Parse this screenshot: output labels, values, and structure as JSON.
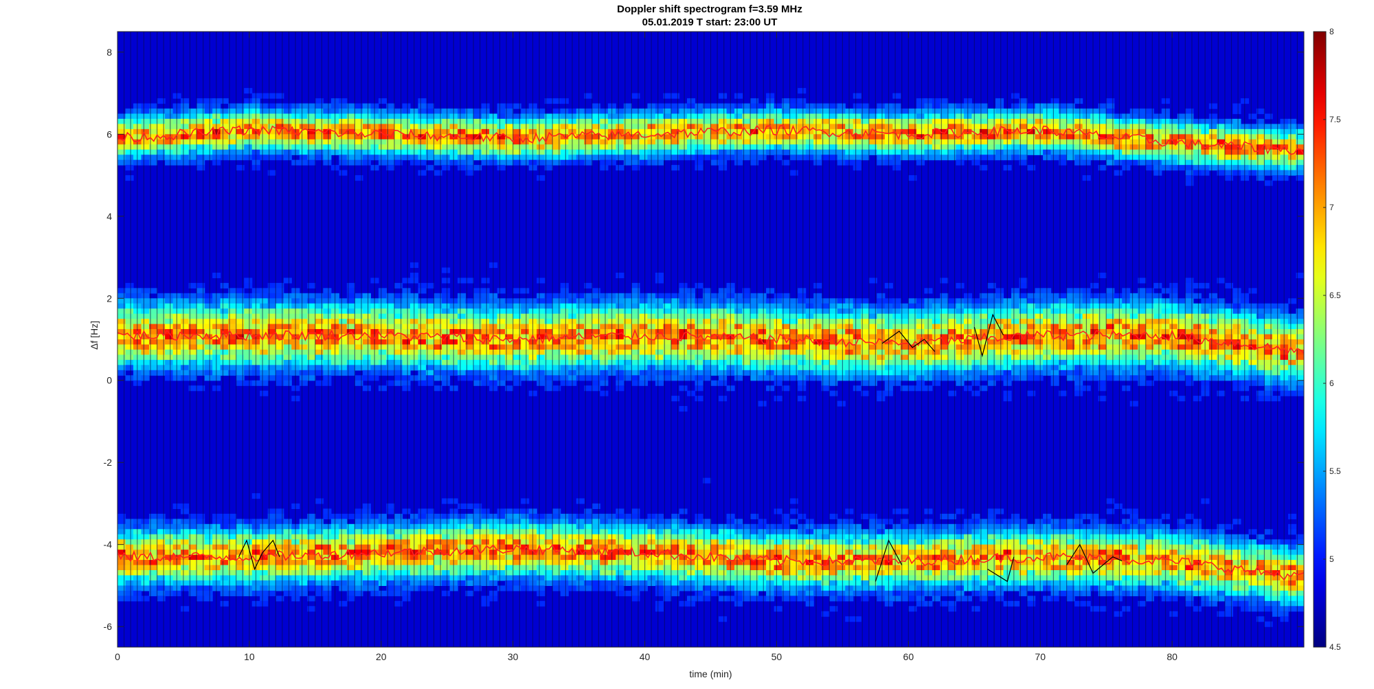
{
  "chart_data": {
    "type": "heatmap",
    "title": "Doppler shift spectrogram f=3.59 MHz",
    "subtitle": "05.01.2019   T start: 23:00 UT",
    "xlabel": "time (min)",
    "ylabel": "Δf [Hz]",
    "xlim": [
      0,
      90
    ],
    "ylim": [
      -6.5,
      8.5
    ],
    "xticks": [
      0,
      10,
      20,
      30,
      40,
      50,
      60,
      70,
      80
    ],
    "yticks": [
      -6,
      -4,
      -2,
      0,
      2,
      4,
      6,
      8
    ],
    "colorbar": {
      "colormap": "jet",
      "clim": [
        4.5,
        8
      ],
      "ticks": [
        4.5,
        5,
        5.5,
        6,
        6.5,
        7,
        7.5,
        8
      ]
    },
    "bands": [
      {
        "name": "upper",
        "center": [
          [
            0,
            5.9
          ],
          [
            10,
            6.1
          ],
          [
            20,
            6.0
          ],
          [
            30,
            5.9
          ],
          [
            40,
            6.0
          ],
          [
            50,
            6.1
          ],
          [
            60,
            6.0
          ],
          [
            70,
            6.1
          ],
          [
            80,
            5.8
          ],
          [
            90,
            5.6
          ]
        ],
        "halfwidth": 0.45
      },
      {
        "name": "middle",
        "center": [
          [
            0,
            1.1
          ],
          [
            10,
            1.1
          ],
          [
            20,
            1.1
          ],
          [
            30,
            1.0
          ],
          [
            40,
            1.1
          ],
          [
            50,
            1.0
          ],
          [
            60,
            0.9
          ],
          [
            70,
            1.1
          ],
          [
            80,
            1.1
          ],
          [
            90,
            0.7
          ]
        ],
        "halfwidth": 0.7
      },
      {
        "name": "lower",
        "center": [
          [
            0,
            -4.3
          ],
          [
            10,
            -4.3
          ],
          [
            20,
            -4.2
          ],
          [
            30,
            -4.1
          ],
          [
            40,
            -4.2
          ],
          [
            50,
            -4.4
          ],
          [
            60,
            -4.4
          ],
          [
            70,
            -4.3
          ],
          [
            80,
            -4.4
          ],
          [
            90,
            -4.8
          ]
        ],
        "halfwidth": 0.6
      }
    ],
    "black_segments": [
      [
        [
          9.2,
          -4.3
        ],
        [
          9.8,
          -3.9
        ],
        [
          10.4,
          -4.6
        ],
        [
          11.0,
          -4.2
        ],
        [
          11.8,
          -3.9
        ],
        [
          12.3,
          -4.3
        ]
      ],
      [
        [
          57.5,
          -4.9
        ],
        [
          58.5,
          -3.9
        ],
        [
          59.5,
          -4.5
        ]
      ],
      [
        [
          58.0,
          0.9
        ],
        [
          59.3,
          1.2
        ],
        [
          60.3,
          0.8
        ],
        [
          61.2,
          1.0
        ],
        [
          62.0,
          0.7
        ]
      ],
      [
        [
          65.0,
          1.3
        ],
        [
          65.6,
          0.6
        ],
        [
          66.4,
          1.6
        ],
        [
          67.2,
          1.1
        ]
      ],
      [
        [
          66.0,
          -4.6
        ],
        [
          67.5,
          -4.9
        ],
        [
          68.0,
          -4.3
        ]
      ],
      [
        [
          72.0,
          -4.5
        ],
        [
          73.0,
          -4.0
        ],
        [
          74.0,
          -4.7
        ],
        [
          75.5,
          -4.3
        ],
        [
          76.2,
          -4.4
        ]
      ]
    ]
  }
}
